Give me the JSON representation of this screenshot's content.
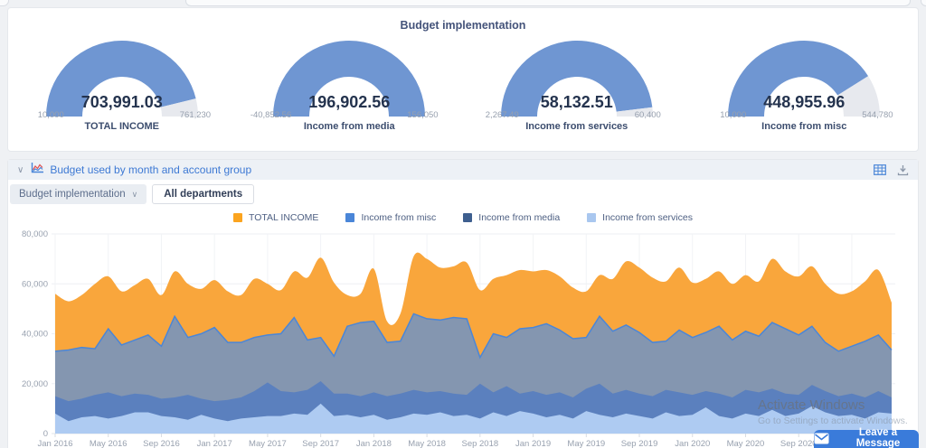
{
  "gauges_panel": {
    "title": "Budget implementation",
    "colors": {
      "fill": "#6f96d2",
      "rest": "#e7e9ee"
    },
    "items": [
      {
        "value": "703,991.03",
        "label": "TOTAL INCOME",
        "min": "10,000",
        "max": "761,230",
        "fraction": 0.924
      },
      {
        "value": "196,902.56",
        "label": "Income from media",
        "min": "-40,852.56",
        "max": "156,050",
        "fraction": 1.0
      },
      {
        "value": "58,132.51",
        "label": "Income from services",
        "min": "2,267.49",
        "max": "60,400",
        "fraction": 0.961
      },
      {
        "value": "448,955.96",
        "label": "Income from misc",
        "min": "10,000",
        "max": "544,780",
        "fraction": 0.821
      }
    ]
  },
  "chart_panel": {
    "title": "Budget used by month and account group",
    "collapse_chevron": "∨",
    "dropdown_label": "Budget implementation",
    "dropdown_chevron": "∨",
    "all_departments_label": "All departments",
    "icons": [
      "line-chart-icon",
      "table-grid-icon",
      "download-icon"
    ]
  },
  "chart_data": {
    "type": "area",
    "title": "Budget used by month and account group",
    "grid": true,
    "legend_position": "top-center",
    "ylim": [
      0,
      80000
    ],
    "yticks": [
      "0",
      "20,000",
      "40,000",
      "60,000",
      "80,000"
    ],
    "x_tick_step": 4,
    "x": [
      "Jan 2016",
      "Feb 2016",
      "Mar 2016",
      "Apr 2016",
      "May 2016",
      "Jun 2016",
      "Jul 2016",
      "Aug 2016",
      "Sep 2016",
      "Oct 2016",
      "Nov 2016",
      "Dec 2016",
      "Jan 2017",
      "Feb 2017",
      "Mar 2017",
      "Apr 2017",
      "May 2017",
      "Jun 2017",
      "Jul 2017",
      "Aug 2017",
      "Sep 2017",
      "Oct 2017",
      "Nov 2017",
      "Dec 2017",
      "Jan 2018",
      "Feb 2018",
      "Mar 2018",
      "Apr 2018",
      "May 2018",
      "Jun 2018",
      "Jul 2018",
      "Aug 2018",
      "Sep 2018",
      "Oct 2018",
      "Nov 2018",
      "Dec 2018",
      "Jan 2019",
      "Feb 2019",
      "Mar 2019",
      "Apr 2019",
      "May 2019",
      "Jun 2019",
      "Jul 2019",
      "Aug 2019",
      "Sep 2019",
      "Oct 2019",
      "Nov 2019",
      "Dec 2019",
      "Jan 2020",
      "Feb 2020",
      "Mar 2020",
      "Apr 2020",
      "May 2020",
      "Jun 2020",
      "Jul 2020",
      "Aug 2020",
      "Sep 2020",
      "Oct 2020",
      "Nov 2020",
      "Dec 2020",
      "Jan 2021",
      "Feb 2021",
      "Mar 2021",
      "Apr 2021"
    ],
    "series": [
      {
        "name": "TOTAL INCOME",
        "legend_color": "#fba41f",
        "fill": "#f9a63c",
        "stroke": "none",
        "smooth": true,
        "values": [
          56000,
          53000,
          55500,
          60000,
          63000,
          57000,
          59500,
          62000,
          55500,
          65000,
          60000,
          58000,
          61500,
          57000,
          55500,
          62000,
          60000,
          57500,
          65000,
          62500,
          70500,
          60500,
          55500,
          56000,
          66000,
          45000,
          48000,
          71000,
          70000,
          66500,
          67000,
          68500,
          57500,
          62000,
          63500,
          65500,
          65000,
          65500,
          63000,
          58500,
          57000,
          63500,
          62000,
          69000,
          66500,
          62500,
          61000,
          66500,
          60500,
          62000,
          65000,
          60000,
          63500,
          61000,
          70000,
          65000,
          63000,
          67000,
          60000,
          56000,
          57000,
          61000,
          65500,
          52500
        ]
      },
      {
        "name": "Income from misc",
        "legend_color": "#4a86d8",
        "fill": "#8496b0",
        "stroke": "#4a86d8",
        "smooth": false,
        "values": [
          33000,
          33500,
          34500,
          34000,
          42000,
          35500,
          37500,
          39500,
          35000,
          47000,
          38500,
          40000,
          42500,
          36500,
          36500,
          38500,
          39500,
          40000,
          46500,
          37500,
          38500,
          31000,
          43000,
          44500,
          45000,
          36500,
          37000,
          48000,
          46000,
          45500,
          46500,
          46000,
          30500,
          40000,
          38500,
          42000,
          42500,
          44000,
          41500,
          38000,
          38500,
          47000,
          41000,
          43500,
          40500,
          36500,
          37000,
          41500,
          38500,
          40500,
          43000,
          37500,
          41000,
          39000,
          44500,
          42000,
          39500,
          43000,
          36500,
          33000,
          35000,
          37000,
          39500,
          33500
        ]
      },
      {
        "name": "Income from media",
        "legend_color": "#3e5f8f",
        "fill": "#5b80be",
        "stroke": "none",
        "smooth": false,
        "values": [
          15000,
          13000,
          14000,
          15500,
          16500,
          15000,
          16000,
          15500,
          14000,
          14500,
          15500,
          14000,
          13000,
          13500,
          14500,
          17000,
          20500,
          17000,
          16500,
          17500,
          21000,
          16000,
          16000,
          15000,
          16500,
          15000,
          16000,
          17500,
          16500,
          17000,
          16000,
          15500,
          20000,
          16500,
          19000,
          16000,
          17000,
          15500,
          16500,
          14500,
          18000,
          20000,
          16000,
          17500,
          16000,
          15000,
          17500,
          16500,
          15500,
          17000,
          16000,
          14500,
          17500,
          16500,
          18000,
          16000,
          15500,
          19500,
          17000,
          15000,
          16000,
          14500,
          17000,
          14500
        ]
      },
      {
        "name": "Income from services",
        "legend_color": "#a9c7ef",
        "fill": "#aecbf2",
        "stroke": "none",
        "smooth": false,
        "values": [
          8000,
          5000,
          6500,
          7000,
          6000,
          7000,
          8500,
          8500,
          7000,
          6500,
          5500,
          7500,
          6000,
          5000,
          6000,
          6500,
          7000,
          7000,
          8000,
          7500,
          12000,
          7000,
          7500,
          6500,
          7500,
          5500,
          6500,
          8000,
          7500,
          8500,
          7000,
          7500,
          6000,
          8500,
          7000,
          9000,
          8000,
          6500,
          7500,
          6000,
          9000,
          7500,
          6500,
          8000,
          7000,
          6000,
          8500,
          7000,
          7500,
          10500,
          7000,
          6000,
          8000,
          7000,
          9500,
          7000,
          8000,
          11000,
          8500,
          7000,
          7500,
          6000,
          8500,
          8000
        ]
      }
    ]
  },
  "watermark": {
    "line1": "Activate Windows",
    "line2": "Go to Settings to activate Windows."
  },
  "chat_widget": {
    "label": "Leave a Message",
    "icon": "envelope-icon",
    "color": "#3a7bda"
  }
}
